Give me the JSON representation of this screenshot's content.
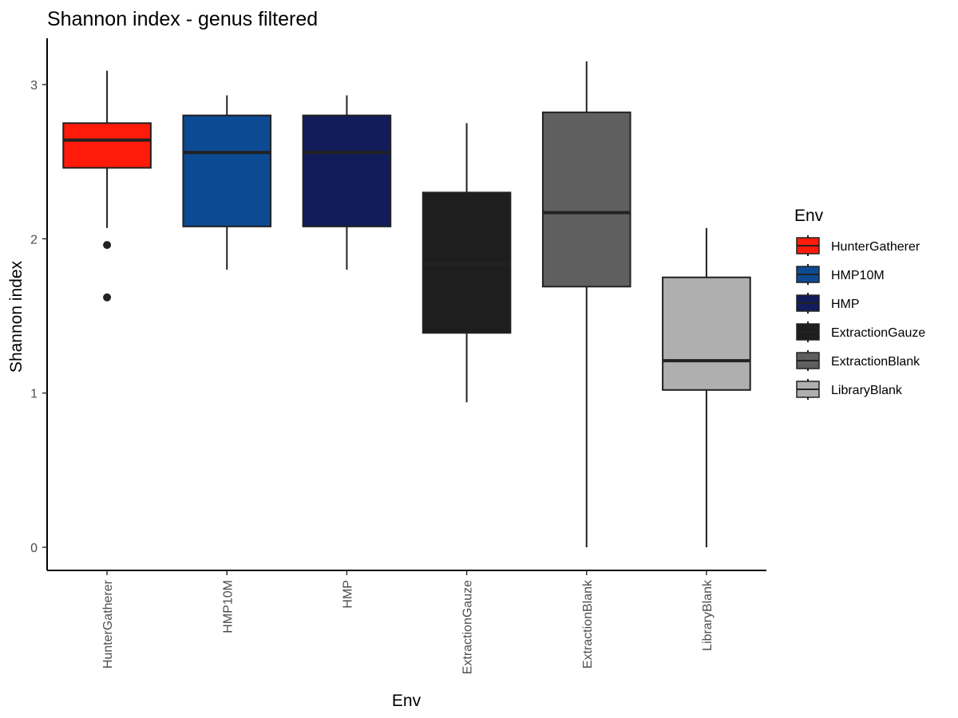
{
  "chart_data": {
    "type": "boxplot",
    "title": "Shannon index - genus filtered",
    "xlabel": "Env",
    "ylabel": "Shannon index",
    "ylim": [
      -0.15,
      3.3
    ],
    "yticks": [
      0,
      1,
      2,
      3
    ],
    "grid": false,
    "legend": {
      "title": "Env",
      "placement": "right"
    },
    "categories": [
      "HunterGatherer",
      "HMP10M",
      "HMP",
      "ExtractionGauze",
      "ExtractionBlank",
      "LibraryBlank"
    ],
    "series": [
      {
        "name": "HunterGatherer",
        "color": "#ff1a0a",
        "whisker_low": 2.07,
        "q1": 2.46,
        "median": 2.64,
        "q3": 2.75,
        "whisker_high": 3.09,
        "outliers": [
          1.96,
          1.62
        ]
      },
      {
        "name": "HMP10M",
        "color": "#0c4a93",
        "whisker_low": 1.8,
        "q1": 2.08,
        "median": 2.56,
        "q3": 2.8,
        "whisker_high": 2.93,
        "outliers": []
      },
      {
        "name": "HMP",
        "color": "#131c5a",
        "whisker_low": 1.8,
        "q1": 2.08,
        "median": 2.56,
        "q3": 2.8,
        "whisker_high": 2.93,
        "outliers": []
      },
      {
        "name": "ExtractionGauze",
        "color": "#1e1e1e",
        "whisker_low": 0.94,
        "q1": 1.39,
        "median": 1.84,
        "q3": 2.3,
        "whisker_high": 2.75,
        "outliers": []
      },
      {
        "name": "ExtractionBlank",
        "color": "#5f5f5f",
        "whisker_low": 0.0,
        "q1": 1.69,
        "median": 2.17,
        "q3": 2.82,
        "whisker_high": 3.15,
        "outliers": []
      },
      {
        "name": "LibraryBlank",
        "color": "#afafaf",
        "whisker_low": 0.0,
        "q1": 1.02,
        "median": 1.21,
        "q3": 1.75,
        "whisker_high": 2.07,
        "outliers": []
      }
    ]
  }
}
